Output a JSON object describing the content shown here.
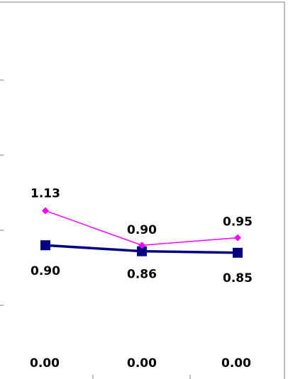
{
  "chart_data": {
    "type": "line",
    "title": "",
    "xlabel": "",
    "ylabel": "",
    "categories": [
      "",
      "",
      ""
    ],
    "ylim": [
      0,
      2.5
    ],
    "grid": false,
    "series": [
      {
        "name": "",
        "color": "#ff00ff",
        "marker": "diamond",
        "values": [
          1.13,
          0.9,
          0.95
        ],
        "labels": [
          "1.13",
          "0.90",
          "0.95"
        ]
      },
      {
        "name": "",
        "color": "#000080",
        "marker": "square",
        "values": [
          0.9,
          0.86,
          0.85
        ],
        "labels": [
          "0.90",
          "0.86",
          "0.85"
        ]
      }
    ],
    "baseline_labels": [
      "0.00",
      "0.00",
      "0.00"
    ]
  }
}
